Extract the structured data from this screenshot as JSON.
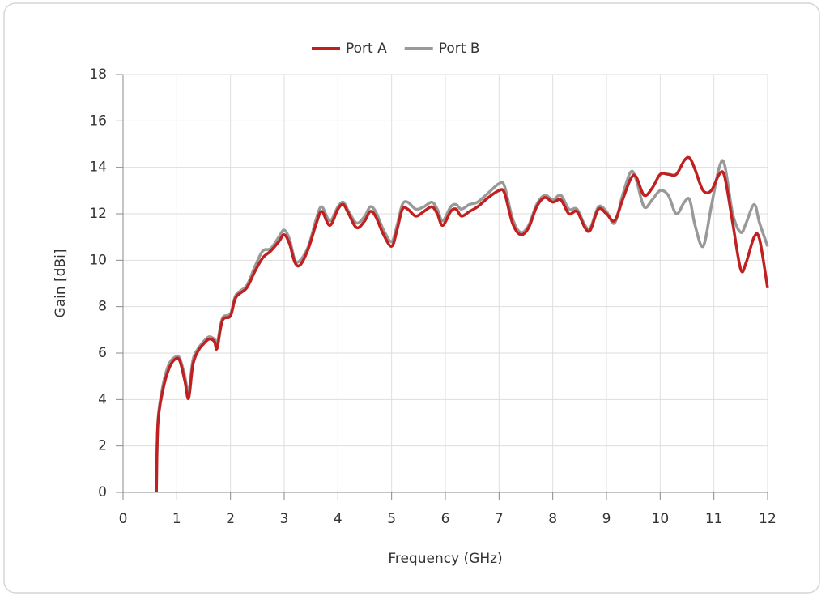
{
  "chart_data": {
    "type": "line",
    "x_label": "Frequency (GHz)",
    "y_label": "Gain [dBi]",
    "xlim": [
      0,
      12
    ],
    "xticks": [
      0,
      1,
      2,
      3,
      4,
      5,
      6,
      7,
      8,
      9,
      10,
      11,
      12
    ],
    "ylim": [
      0,
      18
    ],
    "yticks": [
      0,
      2,
      4,
      6,
      8,
      10,
      12,
      14,
      16,
      18
    ],
    "grid": true,
    "legend": "top",
    "x": [
      0.62,
      0.65,
      0.75,
      0.85,
      0.95,
      1.05,
      1.15,
      1.22,
      1.3,
      1.4,
      1.5,
      1.6,
      1.7,
      1.75,
      1.85,
      2.0,
      2.1,
      2.3,
      2.45,
      2.6,
      2.75,
      2.9,
      3.0,
      3.1,
      3.2,
      3.3,
      3.45,
      3.6,
      3.7,
      3.85,
      4.0,
      4.1,
      4.2,
      4.35,
      4.5,
      4.6,
      4.7,
      4.85,
      5.0,
      5.1,
      5.2,
      5.3,
      5.45,
      5.6,
      5.75,
      5.85,
      5.95,
      6.1,
      6.2,
      6.3,
      6.45,
      6.6,
      6.8,
      7.0,
      7.1,
      7.25,
      7.4,
      7.55,
      7.7,
      7.85,
      8.0,
      8.15,
      8.3,
      8.45,
      8.6,
      8.7,
      8.85,
      9.0,
      9.15,
      9.3,
      9.45,
      9.55,
      9.7,
      9.85,
      10.0,
      10.15,
      10.3,
      10.45,
      10.55,
      10.65,
      10.8,
      10.95,
      11.1,
      11.2,
      11.35,
      11.5,
      11.6,
      11.75,
      11.85,
      12.0
    ],
    "series": [
      {
        "name": "Port A",
        "color": "#c0201f",
        "values": [
          0,
          3,
          4.5,
          5.3,
          5.7,
          5.7,
          4.8,
          4.05,
          5.5,
          6.1,
          6.4,
          6.6,
          6.5,
          6.2,
          7.4,
          7.6,
          8.4,
          8.8,
          9.5,
          10.1,
          10.4,
          10.8,
          11.1,
          10.7,
          9.9,
          9.8,
          10.5,
          11.6,
          12.1,
          11.5,
          12.2,
          12.4,
          12.0,
          11.4,
          11.7,
          12.1,
          11.9,
          11.1,
          10.6,
          11.3,
          12.2,
          12.2,
          11.9,
          12.1,
          12.3,
          12.0,
          11.5,
          12.1,
          12.2,
          11.9,
          12.1,
          12.3,
          12.7,
          13.0,
          12.9,
          11.6,
          11.1,
          11.4,
          12.3,
          12.7,
          12.5,
          12.6,
          12.0,
          12.1,
          11.4,
          11.3,
          12.2,
          12.0,
          11.7,
          12.6,
          13.5,
          13.6,
          12.8,
          13.1,
          13.7,
          13.7,
          13.7,
          14.3,
          14.4,
          13.9,
          13.0,
          13.0,
          13.7,
          13.6,
          11.6,
          9.6,
          9.9,
          11.0,
          10.9,
          8.8
        ]
      },
      {
        "name": "Port B",
        "color": "#999999",
        "values": [
          0,
          3.1,
          4.7,
          5.5,
          5.8,
          5.8,
          5.0,
          4.3,
          5.7,
          6.2,
          6.5,
          6.7,
          6.6,
          6.4,
          7.5,
          7.7,
          8.5,
          8.9,
          9.7,
          10.4,
          10.5,
          11.0,
          11.3,
          10.9,
          10.0,
          10.0,
          10.6,
          11.8,
          12.3,
          11.7,
          12.3,
          12.5,
          12.1,
          11.6,
          11.9,
          12.3,
          12.1,
          11.3,
          10.8,
          11.5,
          12.4,
          12.5,
          12.2,
          12.3,
          12.5,
          12.2,
          11.7,
          12.3,
          12.4,
          12.2,
          12.4,
          12.5,
          12.9,
          13.3,
          13.2,
          11.8,
          11.2,
          11.5,
          12.4,
          12.8,
          12.6,
          12.8,
          12.2,
          12.2,
          11.5,
          11.4,
          12.3,
          12.1,
          11.6,
          12.8,
          13.8,
          13.5,
          12.3,
          12.6,
          13.0,
          12.8,
          12.0,
          12.5,
          12.6,
          11.5,
          10.6,
          12.3,
          14.0,
          14.1,
          12.0,
          11.2,
          11.6,
          12.4,
          11.6,
          10.6
        ]
      }
    ]
  }
}
